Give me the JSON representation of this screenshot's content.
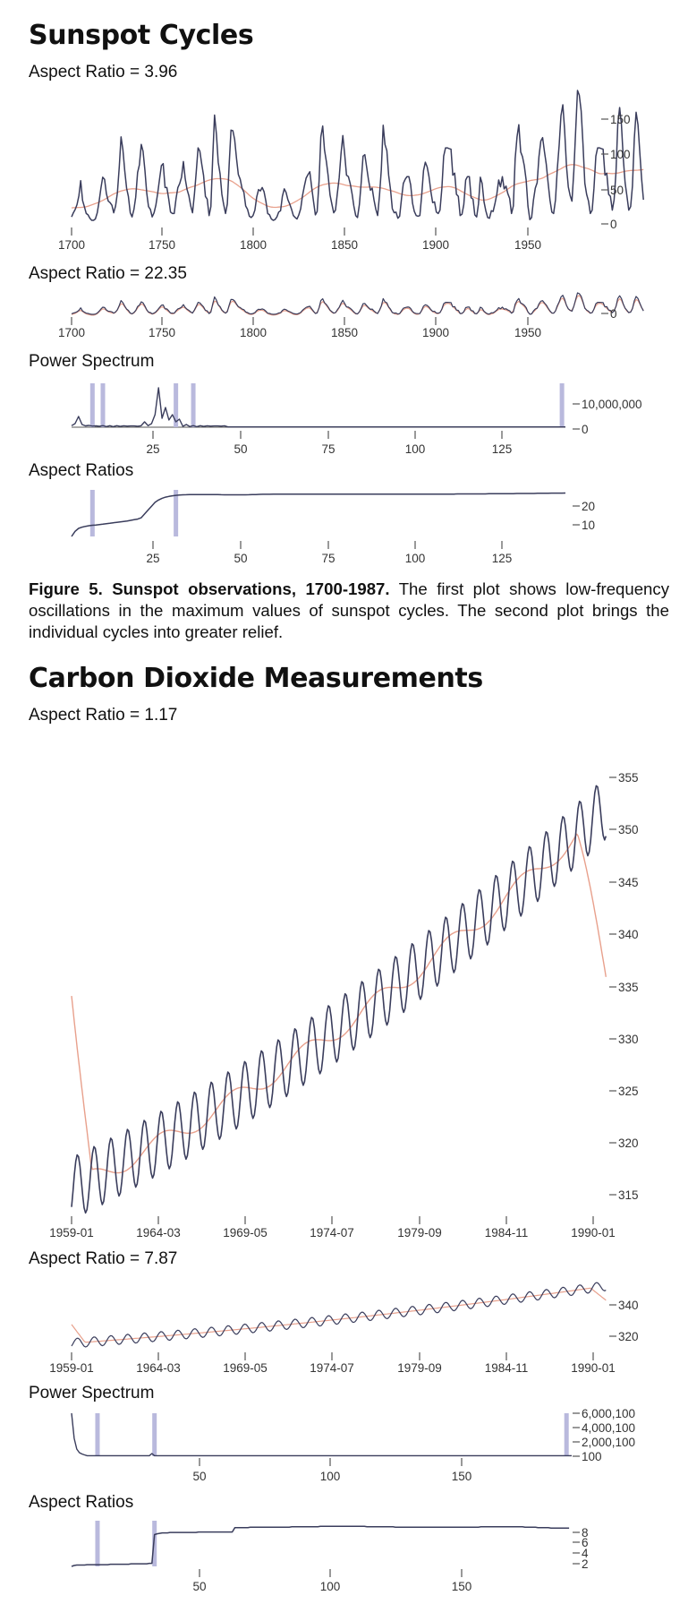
{
  "sections": [
    {
      "title": "Sunspot Cycles",
      "label1": "Aspect Ratio = 3.96",
      "label2": "Aspect Ratio = 22.35",
      "label3": "Power Spectrum",
      "label4": "Aspect Ratios",
      "caption_bold": "Figure 5. Sunspot observations, 1700-1987.",
      "caption_text": " The first plot shows low-frequency oscillations in the maximum values of sunspot cycles. The second plot brings the individual cycles into greater relief."
    },
    {
      "title": "Carbon Dioxide Measurements",
      "label1": "Aspect Ratio = 1.17",
      "label2": "Aspect Ratio = 7.87",
      "label3": "Power Spectrum",
      "label4": "Aspect Ratios"
    }
  ],
  "colors": {
    "data_line": "#3a3d5c",
    "trend_line": "#e8a08c",
    "highlight": "#b9b9dd"
  },
  "chart_data": [
    {
      "id": "sunspot_ar396",
      "type": "line",
      "x_ticks": [
        "1700",
        "1750",
        "1800",
        "1850",
        "1900",
        "1950"
      ],
      "y_ticks": [
        "150",
        "100",
        "50",
        "0"
      ],
      "xlim": [
        1700,
        1987
      ],
      "ylim": [
        0,
        190
      ],
      "series": [
        {
          "role": "yearly_sunspot_number",
          "x_start": 1700,
          "values": [
            5,
            11,
            16,
            23,
            36,
            58,
            29,
            20,
            10,
            8,
            3,
            0,
            0,
            2,
            11,
            27,
            47,
            63,
            60,
            39,
            28,
            26,
            22,
            11,
            21,
            40,
            78,
            122,
            103,
            73,
            47,
            35,
            11,
            5,
            16,
            34,
            70,
            81,
            111,
            101,
            73,
            40,
            20,
            16,
            5,
            11,
            22,
            40,
            60,
            80,
            83,
            48,
            48,
            31,
            12,
            10,
            10,
            32,
            48,
            54,
            63,
            86,
            61,
            45,
            36,
            21,
            11,
            38,
            70,
            106,
            101,
            82,
            66,
            35,
            31,
            7,
            20,
            93,
            154,
            126,
            85,
            68,
            38,
            23,
            10,
            24,
            83,
            132,
            131,
            118,
            90,
            67,
            60,
            47,
            41,
            21,
            16,
            6,
            4,
            7,
            15,
            34,
            45,
            43,
            48,
            42,
            28,
            10,
            8,
            2,
            0,
            1,
            5,
            12,
            14,
            35,
            46,
            41,
            30,
            24,
            16,
            7,
            4,
            2,
            8,
            17,
            36,
            50,
            62,
            67,
            71,
            48,
            28,
            8,
            13,
            57,
            122,
            138,
            103,
            86,
            65,
            37,
            24,
            11,
            15,
            40,
            62,
            98,
            124,
            96,
            66,
            64,
            54,
            39,
            21,
            7,
            4,
            23,
            55,
            94,
            96,
            77,
            59,
            44,
            47,
            30,
            16,
            7,
            37,
            74,
            139,
            111,
            102,
            66,
            45,
            17,
            11,
            12,
            3,
            6,
            32,
            54,
            60,
            64,
            64,
            52,
            25,
            13,
            7,
            6,
            7,
            36,
            73,
            85,
            78,
            64,
            42,
            26,
            27,
            12,
            10,
            15,
            47,
            94,
            106,
            106,
            105,
            104,
            66,
            69,
            38,
            35,
            7,
            9,
            23,
            59,
            64,
            64,
            33,
            31,
            8,
            5,
            24,
            63,
            54,
            27,
            14,
            4,
            3,
            14,
            13,
            25,
            38,
            59,
            49,
            64,
            46,
            50,
            39,
            32,
            10,
            21,
            90,
            122,
            140,
            100,
            93,
            80,
            59,
            21,
            1,
            4,
            30,
            47,
            55,
            93,
            116,
            121,
            100,
            82,
            54,
            30,
            12,
            10,
            30,
            75,
            110,
            153,
            169,
            132,
            79,
            49,
            36,
            28,
            72,
            130,
            190,
            183,
            160,
            112,
            54,
            38,
            28,
            10,
            15,
            47,
            94,
            106,
            106,
            105,
            104,
            66,
            69,
            38,
            35,
            15,
            30,
            70,
            140,
            165,
            140,
            90,
            55,
            35,
            15,
            20,
            50,
            120,
            158,
            140,
            100,
            60,
            30
          ]
        },
        {
          "role": "smoothed_trend"
        }
      ]
    },
    {
      "id": "sunspot_ar2235",
      "type": "line",
      "x_ticks": [
        "1700",
        "1750",
        "1800",
        "1850",
        "1900",
        "1950"
      ],
      "y_ticks": [
        "0"
      ]
    },
    {
      "id": "sunspot_power_spectrum",
      "type": "line",
      "x_ticks": [
        "25",
        "50",
        "75",
        "100",
        "125"
      ],
      "y_ticks": [
        "10,000,000",
        "0"
      ],
      "xlim": [
        1,
        143
      ],
      "highlight_x": [
        7,
        10,
        31,
        36,
        142
      ]
    },
    {
      "id": "sunspot_aspect_ratios",
      "type": "line",
      "x_ticks": [
        "25",
        "50",
        "75",
        "100",
        "125"
      ],
      "y_ticks": [
        "20",
        "10"
      ],
      "xlim": [
        1,
        143
      ],
      "ylim": [
        0,
        30
      ],
      "highlight_x": [
        7,
        31
      ],
      "values": [
        0,
        3.3,
        5.2,
        6.0,
        6.5,
        6.9,
        7.2,
        7.4,
        7.7,
        7.9,
        8.2,
        8.5,
        8.8,
        9.1,
        9.4,
        9.7,
        10.0,
        10.4,
        10.8,
        11.2,
        12.0,
        14.5,
        17.0,
        19.5,
        22.0,
        23.5,
        24.6,
        25.3,
        25.8,
        26.2,
        26.5,
        26.7,
        26.8,
        26.9,
        27.0,
        27.0,
        27.0,
        27.0,
        27.0,
        27.0,
        27.0,
        27.0,
        27.0,
        26.9,
        26.8,
        26.8,
        26.8,
        26.8,
        26.8,
        26.8,
        26.8,
        26.9,
        27.0,
        27.0,
        27.1,
        27.2,
        27.2,
        27.2,
        27.3,
        27.3,
        27.3,
        27.3,
        27.3,
        27.3,
        27.3,
        27.3,
        27.3,
        27.3,
        27.3,
        27.3,
        27.3,
        27.3,
        27.3,
        27.3,
        27.3,
        27.3,
        27.3,
        27.3,
        27.3,
        27.3,
        27.3,
        27.3,
        27.3,
        27.3,
        27.3,
        27.3,
        27.3,
        27.3,
        27.3,
        27.3,
        27.3,
        27.3,
        27.3,
        27.3,
        27.3,
        27.3,
        27.3,
        27.3,
        27.3,
        27.3,
        27.3,
        27.3,
        27.3,
        27.3,
        27.3,
        27.3,
        27.3,
        27.3,
        27.3,
        27.3,
        27.3,
        27.4,
        27.4,
        27.4,
        27.4,
        27.4,
        27.4,
        27.4,
        27.4,
        27.4,
        27.5,
        27.5,
        27.5,
        27.5,
        27.6,
        27.6,
        27.6,
        27.6,
        27.7,
        27.7,
        27.7,
        27.7,
        27.7,
        27.7,
        27.8,
        27.8,
        27.8,
        27.8,
        27.9,
        27.9,
        27.9,
        27.9,
        28.0
      ]
    },
    {
      "id": "co2_ar117",
      "type": "line",
      "x_ticks": [
        "1959-01",
        "1964-03",
        "1969-05",
        "1974-07",
        "1979-09",
        "1984-11",
        "1990-01"
      ],
      "y_ticks": [
        "355",
        "350",
        "345",
        "340",
        "335",
        "330",
        "325",
        "320",
        "315"
      ],
      "xlim": [
        1959.0,
        1991.0
      ],
      "ylim": [
        313.0,
        357.5
      ],
      "series": [
        {
          "role": "monthly_co2_ppm",
          "x_start": 1959.0,
          "step": 0.0833,
          "trend": "315.5 + 0.77*t + 0.0118*t^2 (ppm, t in years since 1959)",
          "seasonal_amplitude": 3.0
        },
        {
          "role": "smoothed_trend",
          "start_value": 334,
          "end_value": 336
        }
      ]
    },
    {
      "id": "co2_ar787",
      "type": "line",
      "x_ticks": [
        "1959-01",
        "1964-03",
        "1969-05",
        "1974-07",
        "1979-09",
        "1984-11",
        "1990-01"
      ],
      "y_ticks": [
        "340",
        "320"
      ]
    },
    {
      "id": "co2_power_spectrum",
      "type": "line",
      "x_ticks": [
        "50",
        "100",
        "150"
      ],
      "y_ticks": [
        "6,000,100",
        "4,000,100",
        "2,000,100",
        "100"
      ],
      "xlim": [
        1,
        194
      ],
      "highlight_x": [
        11,
        33,
        192
      ]
    },
    {
      "id": "co2_aspect_ratios",
      "type": "line",
      "x_ticks": [
        "50",
        "100",
        "150"
      ],
      "y_ticks": [
        "8",
        "6",
        "4",
        "2"
      ],
      "xlim": [
        1,
        194
      ],
      "ylim": [
        0,
        10.5
      ],
      "highlight_x": [
        11,
        33
      ],
      "values": [
        0.0,
        0.2,
        0.3,
        0.3,
        0.3,
        0.3,
        0.4,
        0.4,
        0.4,
        0.4,
        0.4,
        0.4,
        0.4,
        0.4,
        0.4,
        0.5,
        0.5,
        0.5,
        0.5,
        0.5,
        0.5,
        0.5,
        0.5,
        0.6,
        0.6,
        0.6,
        0.6,
        0.6,
        0.6,
        0.6,
        0.7,
        0.7,
        7.3,
        7.5,
        7.6,
        7.7,
        7.7,
        7.7,
        7.8,
        7.8,
        7.8,
        7.8,
        7.8,
        7.8,
        7.8,
        7.8,
        7.8,
        7.8,
        7.8,
        7.9,
        7.9,
        7.9,
        7.9,
        7.9,
        7.9,
        7.9,
        7.9,
        7.9,
        7.9,
        7.9,
        7.9,
        7.9,
        7.9,
        8.9,
        8.9,
        8.9,
        8.9,
        8.9,
        8.9,
        9.0,
        9.0,
        9.0,
        9.0,
        9.0,
        9.0,
        9.0,
        9.0,
        9.0,
        9.0,
        9.0,
        9.0,
        9.0,
        9.0,
        9.0,
        9.0,
        9.1,
        9.1,
        9.1,
        9.1,
        9.1,
        9.1,
        9.1,
        9.1,
        9.1,
        9.1,
        9.1,
        9.2,
        9.2,
        9.2,
        9.2,
        9.2,
        9.2,
        9.2,
        9.2,
        9.2,
        9.2,
        9.2,
        9.2,
        9.2,
        9.2,
        9.2,
        9.2,
        9.2,
        9.2,
        9.1,
        9.1,
        9.1,
        9.1,
        9.1,
        9.1,
        9.1,
        9.1,
        9.1,
        9.1,
        9.1,
        9.0,
        9.0,
        9.0,
        9.0,
        9.0,
        9.0,
        9.0,
        9.0,
        9.0,
        9.0,
        9.0,
        9.0,
        9.0,
        9.0,
        9.0,
        9.0,
        9.0,
        9.0,
        9.0,
        9.0,
        9.0,
        9.0,
        9.0,
        9.0,
        9.0,
        9.0,
        9.0,
        9.0,
        9.0,
        9.0,
        9.0,
        9.0,
        9.0,
        9.1,
        9.1,
        9.1,
        9.1,
        9.1,
        9.1,
        9.1,
        9.1,
        9.1,
        9.1,
        9.1,
        9.1,
        9.1,
        9.1,
        9.1,
        9.1,
        9.1,
        9.0,
        9.0,
        9.0,
        9.0,
        9.0,
        8.9,
        8.9,
        8.9,
        8.9,
        8.9,
        8.8,
        8.8,
        8.8,
        8.8,
        8.8,
        8.8,
        8.8,
        8.8
      ]
    }
  ]
}
